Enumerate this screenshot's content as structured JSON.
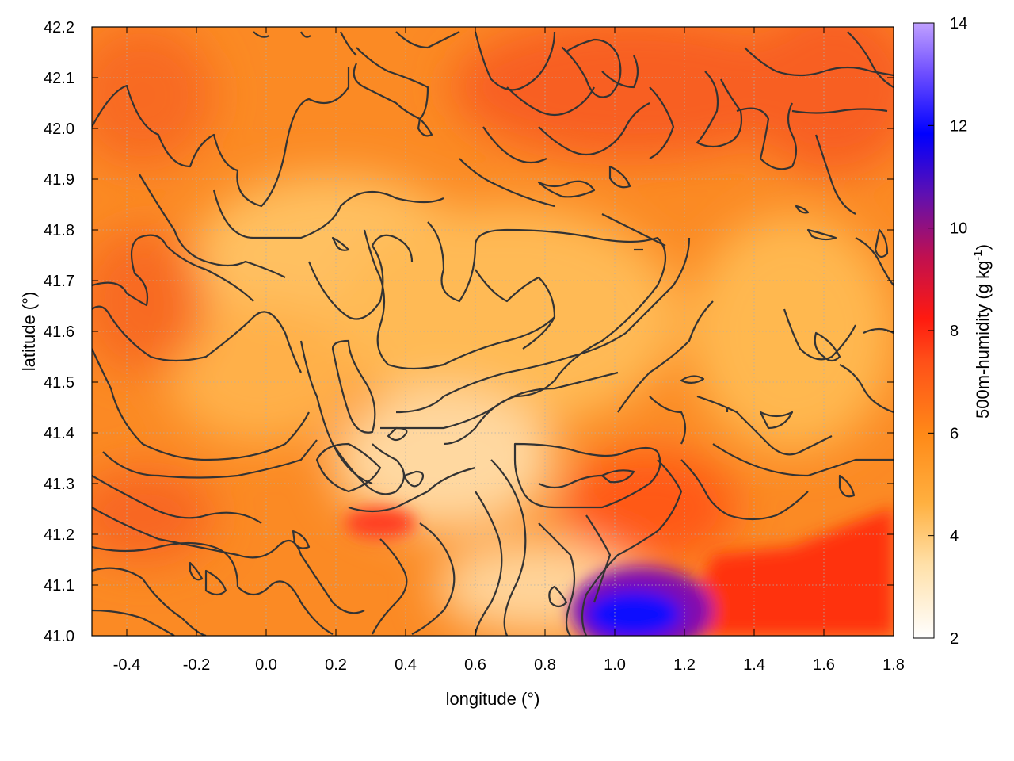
{
  "chart_data": {
    "type": "heatmap",
    "title": "",
    "xlabel": "longitude (°)",
    "ylabel": "latitude (°)",
    "colorbar_label": {
      "main": "500m-humidity (g kg",
      "sup": "-1",
      "close": ")"
    },
    "xlim": [
      -0.5,
      1.8
    ],
    "ylim": [
      41.0,
      42.2
    ],
    "zlim": [
      2,
      14
    ],
    "x_ticks": [
      "-0.4",
      "-0.2",
      "0.0",
      "0.2",
      "0.4",
      "0.6",
      "0.8",
      "1.0",
      "1.2",
      "1.4",
      "1.6",
      "1.8"
    ],
    "x_tick_values": [
      -0.4,
      -0.2,
      0.0,
      0.2,
      0.4,
      0.6,
      0.8,
      1.0,
      1.2,
      1.4,
      1.6,
      1.8
    ],
    "y_ticks": [
      "41.0",
      "41.1",
      "41.2",
      "41.3",
      "41.4",
      "41.5",
      "41.6",
      "41.7",
      "41.8",
      "41.9",
      "42.0",
      "42.1",
      "42.2"
    ],
    "y_tick_values": [
      41.0,
      41.1,
      41.2,
      41.3,
      41.4,
      41.5,
      41.6,
      41.7,
      41.8,
      41.9,
      42.0,
      42.1,
      42.2
    ],
    "colorbar_ticks": [
      "2",
      "4",
      "6",
      "8",
      "10",
      "12",
      "14"
    ],
    "colorbar_tick_values": [
      2,
      4,
      6,
      8,
      10,
      12,
      14
    ],
    "grid": true,
    "colormap": [
      "#ffffff",
      "#ffd080",
      "#ffa500",
      "#ff6a20",
      "#ff1a10",
      "#a010a0",
      "#0000ff",
      "#b48cff"
    ],
    "contour_color": "#333333",
    "field_description_points": [
      {
        "lon": -0.3,
        "lat": 41.6,
        "value": 6.0
      },
      {
        "lon": 0.1,
        "lat": 41.5,
        "value": 5.0
      },
      {
        "lon": 0.5,
        "lat": 41.35,
        "value": 3.5
      },
      {
        "lon": 0.8,
        "lat": 41.7,
        "value": 4.5
      },
      {
        "lon": 1.0,
        "lat": 42.05,
        "value": 6.5
      },
      {
        "lon": 1.5,
        "lat": 42.0,
        "value": 6.5
      },
      {
        "lon": 1.5,
        "lat": 41.6,
        "value": 4.8
      },
      {
        "lon": 1.1,
        "lat": 41.4,
        "value": 5.8
      },
      {
        "lon": 1.05,
        "lat": 41.05,
        "value": 11.5
      },
      {
        "lon": 1.6,
        "lat": 41.12,
        "value": 7.5
      },
      {
        "lon": 0.3,
        "lat": 41.2,
        "value": 6.8
      }
    ]
  }
}
